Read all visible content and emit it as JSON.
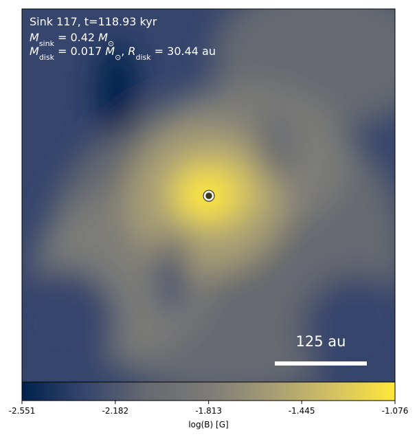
{
  "chart_data": {
    "type": "image",
    "annotations": {
      "line1": "Sink 117, t=118.93 kyr",
      "line2": [
        "M",
        "sink",
        "= 0.42",
        "M",
        "⊙"
      ],
      "line3": [
        "M",
        "disk",
        "= 0.017",
        "M",
        "⊙",
        ",",
        "R",
        "disk",
        "= 30.44 au"
      ]
    },
    "scale_bar_label": "125 au",
    "colorbar": {
      "label": "log(B) [G]",
      "lim": [
        -2.551,
        -1.076
      ],
      "ticks": [
        -2.551,
        -2.182,
        -1.813,
        -1.445,
        -1.076
      ],
      "colormap": [
        "#00224e",
        "#35456c",
        "#666970",
        "#7c7b78",
        "#a59c74",
        "#d3c164",
        "#fee838"
      ]
    }
  }
}
